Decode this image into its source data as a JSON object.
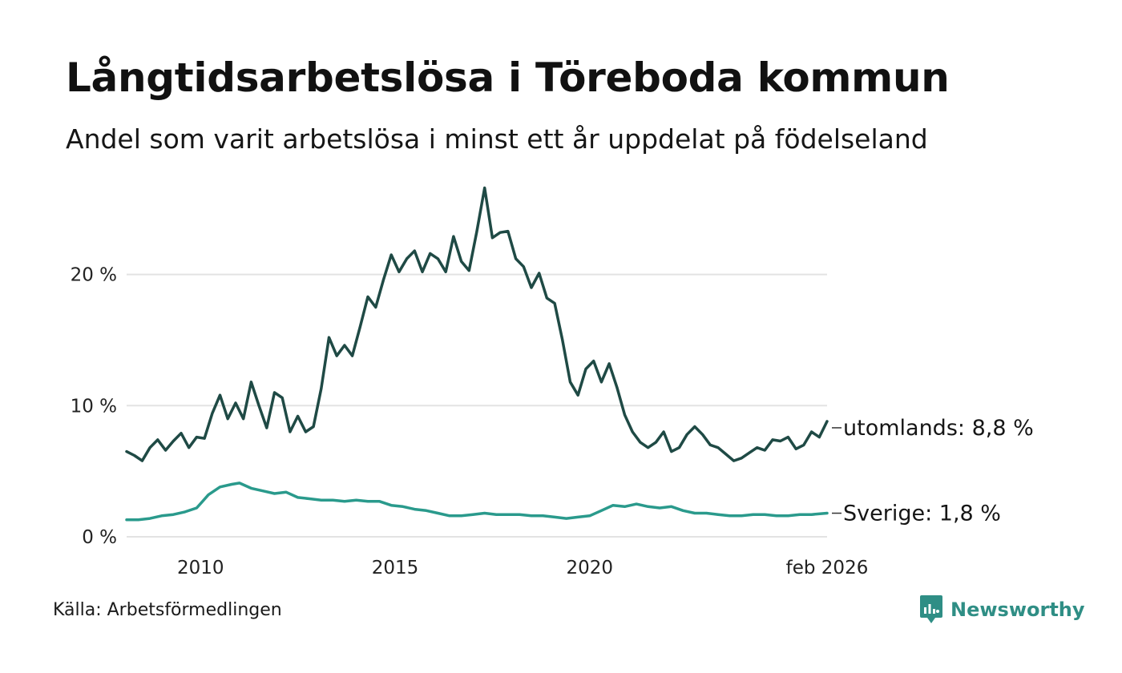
{
  "title": "Långtidsarbetslösa i Töreboda kommun",
  "subtitle": "Andel som varit arbetslösa i minst ett år uppdelat på födelseland",
  "source": "Källa: Arbetsförmedlingen",
  "brand": "Newsworthy",
  "colors": {
    "utomlands": "#1f4a45",
    "sverige": "#2a9a8c",
    "grid": "#e3e3e3",
    "brand": "#2f8e85"
  },
  "chart_data": {
    "type": "line",
    "title": "Långtidsarbetslösa i Töreboda kommun",
    "xlabel": "",
    "ylabel": "",
    "xlim": [
      2008.1,
      2026.1
    ],
    "ylim": [
      0,
      27
    ],
    "y_ticks": [
      0,
      10,
      20
    ],
    "y_tick_labels": [
      "0 %",
      "10 %",
      "20 %"
    ],
    "x_ticks": [
      2010,
      2015,
      2020,
      2026.1
    ],
    "x_tick_labels": [
      "2010",
      "2015",
      "2020",
      "feb 2026"
    ],
    "grid": true,
    "series": [
      {
        "name": "utomlands",
        "end_label": "utomlands: 8,8 %",
        "x": [
          2008.1,
          2008.3,
          2008.5,
          2008.7,
          2008.9,
          2009.1,
          2009.3,
          2009.5,
          2009.7,
          2009.9,
          2010.1,
          2010.3,
          2010.5,
          2010.7,
          2010.9,
          2011.1,
          2011.3,
          2011.5,
          2011.7,
          2011.9,
          2012.1,
          2012.3,
          2012.5,
          2012.7,
          2012.9,
          2013.1,
          2013.3,
          2013.5,
          2013.7,
          2013.9,
          2014.1,
          2014.3,
          2014.5,
          2014.7,
          2014.9,
          2015.1,
          2015.3,
          2015.5,
          2015.7,
          2015.9,
          2016.1,
          2016.3,
          2016.5,
          2016.7,
          2016.9,
          2017.1,
          2017.3,
          2017.5,
          2017.7,
          2017.9,
          2018.1,
          2018.3,
          2018.5,
          2018.7,
          2018.9,
          2019.1,
          2019.3,
          2019.5,
          2019.7,
          2019.9,
          2020.1,
          2020.3,
          2020.5,
          2020.7,
          2020.9,
          2021.1,
          2021.3,
          2021.5,
          2021.7,
          2021.9,
          2022.1,
          2022.3,
          2022.5,
          2022.7,
          2022.9,
          2023.1,
          2023.3,
          2023.5,
          2023.7,
          2023.9,
          2024.1,
          2024.3,
          2024.5,
          2024.7,
          2024.9,
          2025.1,
          2025.3,
          2025.5,
          2025.7,
          2025.9,
          2026.1
        ],
        "values": [
          6.5,
          6.2,
          5.8,
          6.8,
          7.4,
          6.6,
          7.3,
          7.9,
          6.8,
          7.6,
          7.5,
          9.4,
          10.8,
          9.0,
          10.2,
          9.0,
          11.8,
          10.0,
          8.3,
          11.0,
          10.6,
          8.0,
          9.2,
          8.0,
          8.4,
          11.3,
          15.2,
          13.8,
          14.6,
          13.8,
          16.0,
          18.3,
          17.5,
          19.6,
          21.5,
          20.2,
          21.2,
          21.8,
          20.2,
          21.6,
          21.2,
          20.2,
          22.9,
          21.0,
          20.3,
          23.3,
          26.6,
          22.8,
          23.2,
          23.3,
          21.2,
          20.6,
          19.0,
          20.1,
          18.2,
          17.8,
          15.0,
          11.8,
          10.8,
          12.8,
          13.4,
          11.8,
          13.2,
          11.4,
          9.3,
          8.0,
          7.2,
          6.8,
          7.2,
          8.0,
          6.5,
          6.8,
          7.8,
          8.4,
          7.8,
          7.0,
          6.8,
          6.3,
          5.8,
          6.0,
          6.4,
          6.8,
          6.6,
          7.4,
          7.3,
          7.6,
          6.7,
          7.0,
          8.0,
          7.6,
          8.8
        ]
      },
      {
        "name": "Sverige",
        "end_label": "Sverige: 1,8 %",
        "x": [
          2008.1,
          2008.4,
          2008.7,
          2009.0,
          2009.3,
          2009.6,
          2009.9,
          2010.2,
          2010.5,
          2010.8,
          2011.0,
          2011.3,
          2011.6,
          2011.9,
          2012.2,
          2012.5,
          2012.8,
          2013.1,
          2013.4,
          2013.7,
          2014.0,
          2014.3,
          2014.6,
          2014.9,
          2015.2,
          2015.5,
          2015.8,
          2016.1,
          2016.4,
          2016.7,
          2017.0,
          2017.3,
          2017.6,
          2017.9,
          2018.2,
          2018.5,
          2018.8,
          2019.1,
          2019.4,
          2019.7,
          2020.0,
          2020.3,
          2020.6,
          2020.9,
          2021.2,
          2021.5,
          2021.8,
          2022.1,
          2022.4,
          2022.7,
          2023.0,
          2023.3,
          2023.6,
          2023.9,
          2024.2,
          2024.5,
          2024.8,
          2025.1,
          2025.4,
          2025.7,
          2026.1
        ],
        "values": [
          1.3,
          1.3,
          1.4,
          1.6,
          1.7,
          1.9,
          2.2,
          3.2,
          3.8,
          4.0,
          4.1,
          3.7,
          3.5,
          3.3,
          3.4,
          3.0,
          2.9,
          2.8,
          2.8,
          2.7,
          2.8,
          2.7,
          2.7,
          2.4,
          2.3,
          2.1,
          2.0,
          1.8,
          1.6,
          1.6,
          1.7,
          1.8,
          1.7,
          1.7,
          1.7,
          1.6,
          1.6,
          1.5,
          1.4,
          1.5,
          1.6,
          2.0,
          2.4,
          2.3,
          2.5,
          2.3,
          2.2,
          2.3,
          2.0,
          1.8,
          1.8,
          1.7,
          1.6,
          1.6,
          1.7,
          1.7,
          1.6,
          1.6,
          1.7,
          1.7,
          1.8
        ]
      }
    ]
  }
}
